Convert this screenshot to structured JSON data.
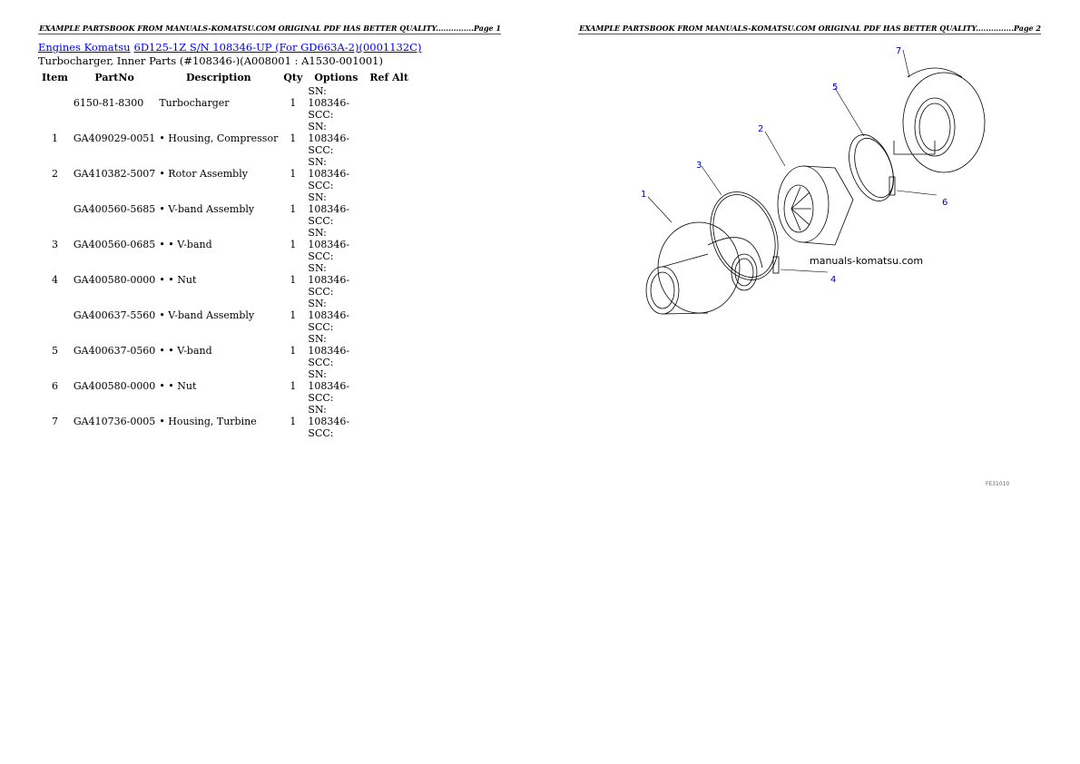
{
  "header": {
    "page1": "EXAMPLE PARTSBOOK FROM MANUALS-KOMATSU.COM ORIGINAL PDF HAS BETTER QUALITY...............Page 1",
    "page2": "EXAMPLE PARTSBOOK FROM MANUALS-KOMATSU.COM ORIGINAL PDF HAS BETTER QUALITY...............Page 2"
  },
  "breadcrumb": {
    "link1": "Engines Komatsu",
    "link2": "6D125-1Z S/N 108346-UP (For GD663A-2)(0001132C)"
  },
  "subtitle": "Turbocharger, Inner Parts (#108346-)(A008001 : A1530-001001)",
  "table": {
    "headers": [
      "Item",
      "PartNo",
      "Description",
      "Qty",
      "Options",
      "Ref Alt"
    ],
    "rows": [
      [
        "",
        "6150-81-8300",
        "Turbocharger",
        "1",
        "SN: 108346-SCC:",
        ""
      ],
      [
        "1",
        "GA409029-0051",
        "• Housing, Compressor",
        "1",
        "SN: 108346-SCC:",
        ""
      ],
      [
        "2",
        "GA410382-5007",
        "• Rotor Assembly",
        "1",
        "SN: 108346-SCC:",
        ""
      ],
      [
        "",
        "GA400560-5685",
        "• V-band Assembly",
        "1",
        "SN: 108346-SCC:",
        ""
      ],
      [
        "3",
        "GA400560-0685",
        "• • V-band",
        "1",
        "SN: 108346-SCC:",
        ""
      ],
      [
        "4",
        "GA400580-0000",
        "• • Nut",
        "1",
        "SN: 108346-SCC:",
        ""
      ],
      [
        "",
        "GA400637-5560",
        "• V-band Assembly",
        "1",
        "SN: 108346-SCC:",
        ""
      ],
      [
        "5",
        "GA400637-0560",
        "• • V-band",
        "1",
        "SN: 108346-SCC:",
        ""
      ],
      [
        "6",
        "GA400580-0000",
        "• • Nut",
        "1",
        "SN: 108346-SCC:",
        ""
      ],
      [
        "7",
        "GA410736-0005",
        "• Housing, Turbine",
        "1",
        "SN: 108346-SCC:",
        ""
      ]
    ]
  },
  "diagram": {
    "labels": [
      "1",
      "2",
      "3",
      "4",
      "5",
      "6",
      "7"
    ],
    "watermark": "manuals-komatsu.com",
    "code": "FE31010",
    "label_color": "#0000cc"
  }
}
